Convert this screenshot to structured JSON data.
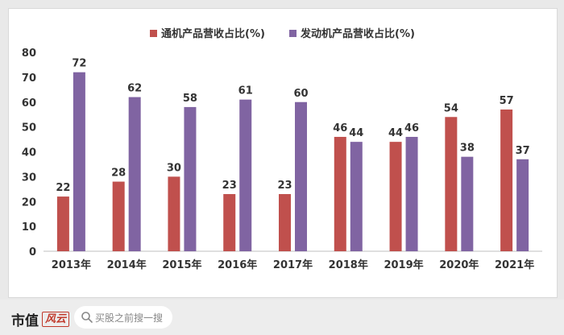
{
  "chart_data": {
    "type": "bar",
    "categories": [
      "2013年",
      "2014年",
      "2015年",
      "2016年",
      "2017年",
      "2018年",
      "2019年",
      "2020年",
      "2021年"
    ],
    "series": [
      {
        "name": "通机产品营收占比(%)",
        "color": "#c0504d",
        "values": [
          22,
          28,
          30,
          23,
          23,
          46,
          44,
          54,
          57
        ]
      },
      {
        "name": "发动机产品营收占比(%)",
        "color": "#8064a2",
        "values": [
          72,
          62,
          58,
          61,
          60,
          44,
          46,
          38,
          37
        ]
      }
    ],
    "ylim": [
      0,
      80
    ],
    "yticks": [
      0,
      10,
      20,
      30,
      40,
      50,
      60,
      70,
      80
    ],
    "legend_position": "top-center",
    "grid": false
  },
  "footer": {
    "brand": "市值",
    "brand_logo": "风云",
    "search_placeholder": "买股之前搜一搜"
  }
}
